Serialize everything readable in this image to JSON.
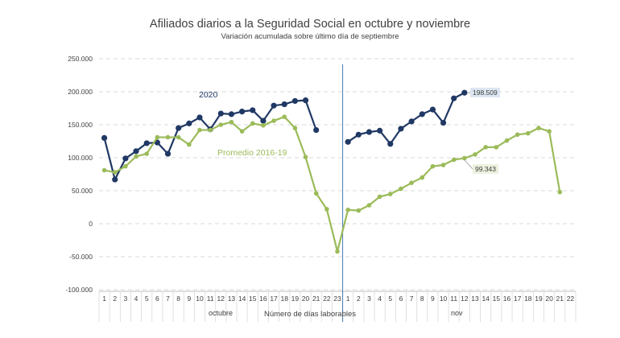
{
  "chart_data": {
    "type": "line",
    "title": "Afiliados diarios a la Seguridad Social en octubre y noviembre",
    "subtitle": "Variación acumulada sobre último día de septiembre",
    "xlabel": "Número de días laborables",
    "ylabel": "",
    "ylim": [
      -100000,
      250000
    ],
    "yticks": [
      -100000,
      -50000,
      0,
      50000,
      100000,
      150000,
      200000,
      250000
    ],
    "ytick_labels": [
      "-100.000",
      "-50.000",
      "0",
      "50.000",
      "100.000",
      "150.000",
      "200.000",
      "250.000"
    ],
    "grid": true,
    "month_labels": [
      "octubre",
      "nov"
    ],
    "categories": [
      "1",
      "2",
      "3",
      "4",
      "5",
      "6",
      "7",
      "8",
      "9",
      "10",
      "11",
      "12",
      "13",
      "14",
      "15",
      "16",
      "17",
      "18",
      "19",
      "20",
      "21",
      "22",
      "23",
      "1",
      "2",
      "3",
      "4",
      "5",
      "6",
      "7",
      "8",
      "9",
      "10",
      "11",
      "12",
      "13",
      "14",
      "15",
      "16",
      "17",
      "18",
      "19",
      "20",
      "21",
      "22"
    ],
    "series": [
      {
        "name": "2020",
        "color": "#203864",
        "values": [
          130000,
          67000,
          99000,
          110000,
          122000,
          123000,
          106000,
          145000,
          152000,
          161000,
          143000,
          167000,
          166000,
          170000,
          172000,
          156000,
          179000,
          181000,
          186000,
          187000,
          142000,
          null,
          null,
          124000,
          135000,
          139000,
          141000,
          121000,
          144000,
          155000,
          166000,
          173000,
          153000,
          190000,
          198509,
          null,
          null,
          null,
          null,
          null,
          null,
          null,
          null,
          null,
          null
        ]
      },
      {
        "name": "Promedio 2016-19",
        "color": "#9bbb59",
        "values": [
          81000,
          78000,
          87000,
          102000,
          106000,
          131000,
          131000,
          131000,
          120000,
          142000,
          142000,
          150000,
          154000,
          140000,
          152000,
          149000,
          156000,
          162000,
          145000,
          101000,
          46000,
          22000,
          -42000,
          21000,
          20000,
          28000,
          41000,
          45000,
          53000,
          62000,
          70000,
          87000,
          89000,
          97000,
          99343,
          105000,
          116000,
          116000,
          126000,
          135000,
          137000,
          145000,
          140000,
          48000,
          null
        ]
      }
    ],
    "annotations": [
      "198.509",
      "99.343"
    ],
    "divider_after_category_index": 22
  }
}
